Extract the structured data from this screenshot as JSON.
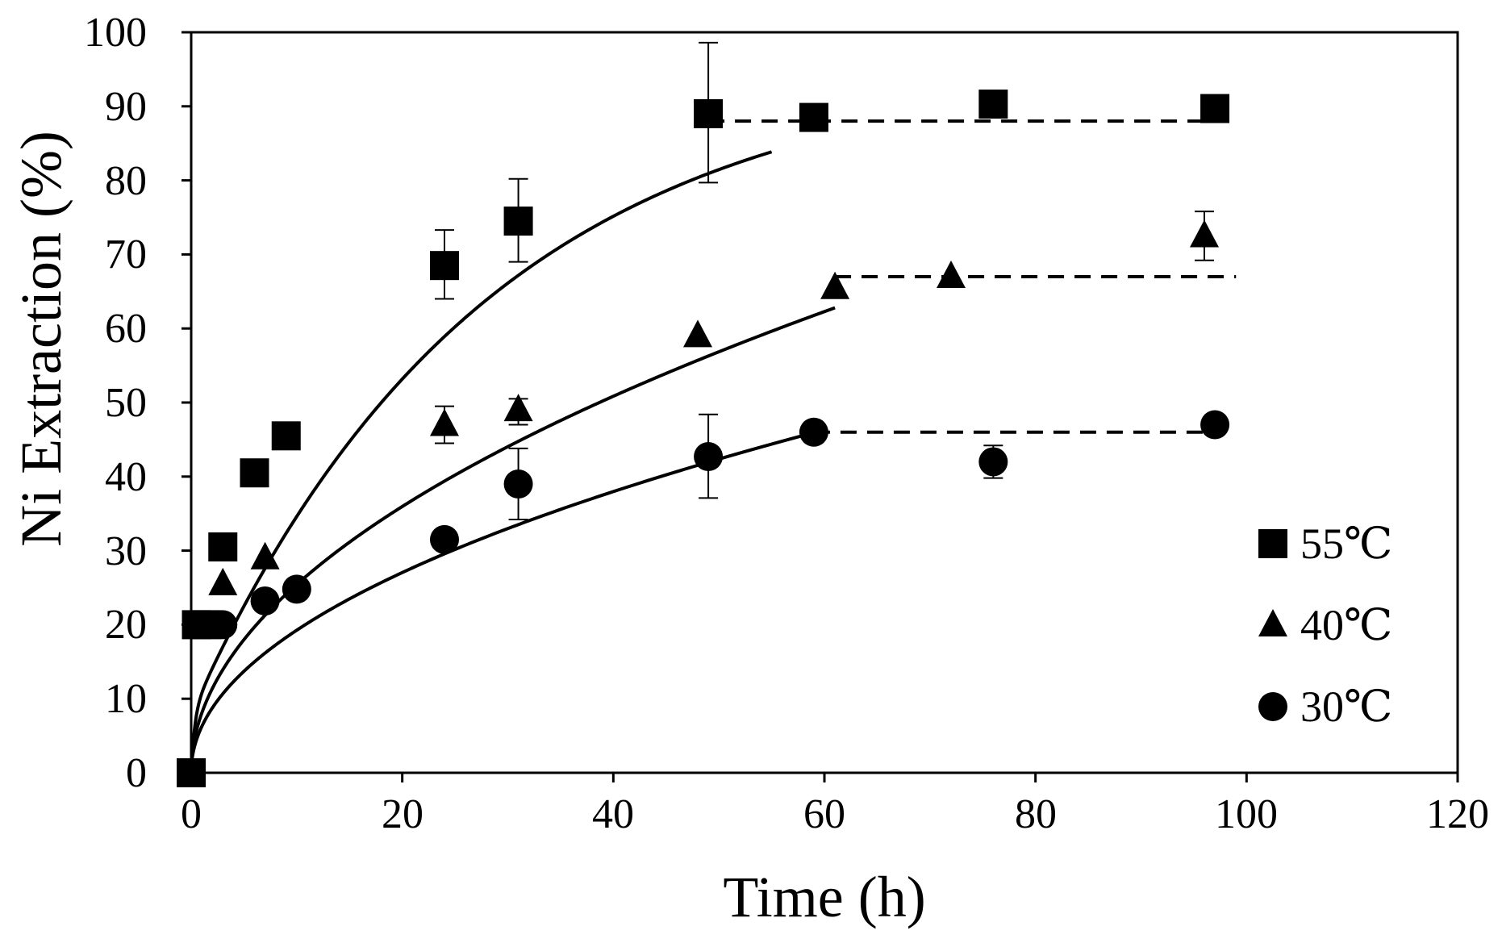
{
  "chart_data": {
    "type": "scatter",
    "title": "",
    "xlabel": "Time (h)",
    "ylabel": "Ni Extraction  (%)",
    "xlim": [
      0,
      120
    ],
    "ylim": [
      0,
      100
    ],
    "x_ticks": [
      "0",
      "20",
      "40",
      "60",
      "80",
      "100",
      "120"
    ],
    "y_ticks": [
      "0",
      "10",
      "20",
      "30",
      "40",
      "50",
      "60",
      "70",
      "80",
      "90",
      "100"
    ],
    "grid": false,
    "legend_position": "right",
    "series": [
      {
        "name": "55℃",
        "marker": "square",
        "points": [
          {
            "x": 0,
            "y": 0
          },
          {
            "x": 0.5,
            "y": 20
          },
          {
            "x": 1.5,
            "y": 20
          },
          {
            "x": 3,
            "y": 30.5
          },
          {
            "x": 6,
            "y": 40.5
          },
          {
            "x": 9,
            "y": 45.5
          },
          {
            "x": 24,
            "y": 68.5,
            "err": [
              64,
              73.3
            ]
          },
          {
            "x": 31,
            "y": 74.5,
            "err": [
              69,
              80.2
            ]
          },
          {
            "x": 49,
            "y": 89,
            "err": [
              79.7,
              98.6
            ]
          },
          {
            "x": 59,
            "y": 88.5
          },
          {
            "x": 76,
            "y": 90.3
          },
          {
            "x": 97,
            "y": 89.7
          }
        ],
        "fit_curve": {
          "model": "y = 88*(1-exp(-0.036*t)) + 8*(1-exp(-3*t))",
          "t_end": 55
        },
        "plateau": {
          "y": 88,
          "x_start": 49,
          "x_end": 97
        }
      },
      {
        "name": "40℃",
        "marker": "triangle",
        "points": [
          {
            "x": 3,
            "y": 25.5
          },
          {
            "x": 7,
            "y": 29
          },
          {
            "x": 24,
            "y": 47,
            "err": [
              44.5,
              49.5
            ]
          },
          {
            "x": 31,
            "y": 49,
            "err": [
              47,
              50.5
            ]
          },
          {
            "x": 48,
            "y": 59
          },
          {
            "x": 61,
            "y": 65.5
          },
          {
            "x": 72,
            "y": 67
          },
          {
            "x": 96,
            "y": 72.5,
            "err": [
              69.2,
              75.8
            ]
          }
        ],
        "fit_curve": {
          "model": "y = 8.04*t^0.5",
          "t_end": 61
        },
        "plateau": {
          "y": 67,
          "x_start": 61,
          "x_end": 99
        }
      },
      {
        "name": "30℃",
        "marker": "circle",
        "points": [
          {
            "x": 0,
            "y": 0
          },
          {
            "x": 3,
            "y": 20
          },
          {
            "x": 7,
            "y": 23.2
          },
          {
            "x": 10,
            "y": 24.8
          },
          {
            "x": 24,
            "y": 31.5
          },
          {
            "x": 31,
            "y": 39,
            "err": [
              34.2,
              43.8
            ]
          },
          {
            "x": 49,
            "y": 42.7,
            "err": [
              37.1,
              48.4
            ]
          },
          {
            "x": 59,
            "y": 46
          },
          {
            "x": 76,
            "y": 42,
            "err": [
              39.8,
              44.2
            ]
          },
          {
            "x": 97,
            "y": 47
          }
        ],
        "fit_curve": {
          "model": "y = 6.23*t^0.49",
          "t_end": 59
        },
        "plateau": {
          "y": 46,
          "x_start": 59,
          "x_end": 97
        }
      }
    ]
  }
}
